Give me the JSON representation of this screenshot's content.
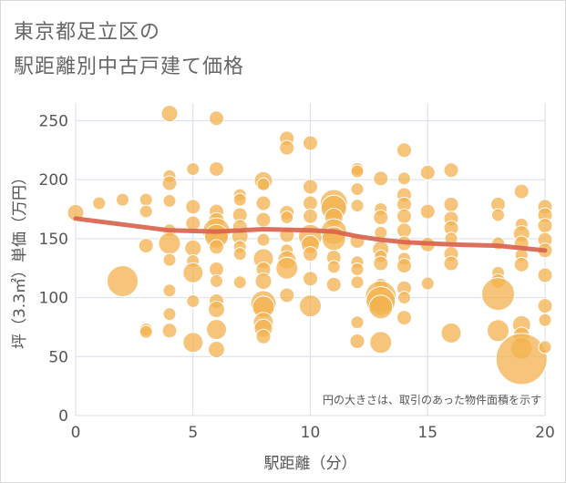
{
  "title": {
    "line1": "東京都足立区の",
    "line2": "駅距離別中古戸建て価格"
  },
  "colors": {
    "bubble_fill": "#f3b24f",
    "bubble_stroke": "#ffffff",
    "trend": "#d9604a",
    "grid": "#d8dee8",
    "axis_text": "#555555",
    "title_text": "#666666"
  },
  "note": "円の大きさは、取引のあった物件面積を示す",
  "chart_data": {
    "type": "scatter",
    "subtype": "bubble",
    "title": "東京都足立区の駅距離別中古戸建て価格",
    "xlabel": "駅距離（分）",
    "ylabel": "坪（3.3㎡）単価（万円）",
    "xlim": [
      0,
      20
    ],
    "ylim": [
      0,
      265
    ],
    "xticks": [
      "0",
      "5",
      "10",
      "15",
      "20"
    ],
    "yticks": [
      "0",
      "50",
      "100",
      "150",
      "200",
      "250"
    ],
    "grid": true,
    "points": [
      {
        "x": 0,
        "y": 172,
        "s": 9
      },
      {
        "x": 1,
        "y": 180,
        "s": 7
      },
      {
        "x": 2,
        "y": 114,
        "s": 17
      },
      {
        "x": 2,
        "y": 183,
        "s": 7
      },
      {
        "x": 3,
        "y": 183,
        "s": 7
      },
      {
        "x": 3,
        "y": 173,
        "s": 7
      },
      {
        "x": 3,
        "y": 144,
        "s": 8
      },
      {
        "x": 3,
        "y": 73,
        "s": 7
      },
      {
        "x": 3,
        "y": 71,
        "s": 7
      },
      {
        "x": 4,
        "y": 256,
        "s": 9
      },
      {
        "x": 4,
        "y": 203,
        "s": 7
      },
      {
        "x": 4,
        "y": 197,
        "s": 8
      },
      {
        "x": 4,
        "y": 182,
        "s": 7
      },
      {
        "x": 4,
        "y": 157,
        "s": 7
      },
      {
        "x": 4,
        "y": 146,
        "s": 12
      },
      {
        "x": 4,
        "y": 132,
        "s": 7
      },
      {
        "x": 4,
        "y": 106,
        "s": 7
      },
      {
        "x": 4,
        "y": 86,
        "s": 7
      },
      {
        "x": 4,
        "y": 72,
        "s": 8
      },
      {
        "x": 5,
        "y": 209,
        "s": 7
      },
      {
        "x": 5,
        "y": 177,
        "s": 8
      },
      {
        "x": 5,
        "y": 163,
        "s": 8
      },
      {
        "x": 5,
        "y": 142,
        "s": 9
      },
      {
        "x": 5,
        "y": 131,
        "s": 7
      },
      {
        "x": 5,
        "y": 121,
        "s": 11
      },
      {
        "x": 5,
        "y": 97,
        "s": 7
      },
      {
        "x": 5,
        "y": 62,
        "s": 11
      },
      {
        "x": 6,
        "y": 252,
        "s": 8
      },
      {
        "x": 6,
        "y": 209,
        "s": 8
      },
      {
        "x": 6,
        "y": 173,
        "s": 8
      },
      {
        "x": 6,
        "y": 165,
        "s": 9
      },
      {
        "x": 6,
        "y": 156,
        "s": 15
      },
      {
        "x": 6,
        "y": 152,
        "s": 13
      },
      {
        "x": 6,
        "y": 143,
        "s": 8
      },
      {
        "x": 6,
        "y": 124,
        "s": 8
      },
      {
        "x": 6,
        "y": 114,
        "s": 7
      },
      {
        "x": 6,
        "y": 97,
        "s": 8
      },
      {
        "x": 6,
        "y": 90,
        "s": 9
      },
      {
        "x": 6,
        "y": 73,
        "s": 11
      },
      {
        "x": 6,
        "y": 56,
        "s": 9
      },
      {
        "x": 7,
        "y": 187,
        "s": 7
      },
      {
        "x": 7,
        "y": 183,
        "s": 7
      },
      {
        "x": 7,
        "y": 170,
        "s": 8
      },
      {
        "x": 7,
        "y": 160,
        "s": 8
      },
      {
        "x": 7,
        "y": 152,
        "s": 9
      },
      {
        "x": 7,
        "y": 143,
        "s": 7
      },
      {
        "x": 7,
        "y": 137,
        "s": 7
      },
      {
        "x": 7,
        "y": 113,
        "s": 7
      },
      {
        "x": 8,
        "y": 199,
        "s": 10
      },
      {
        "x": 8,
        "y": 196,
        "s": 7
      },
      {
        "x": 8,
        "y": 180,
        "s": 8
      },
      {
        "x": 8,
        "y": 166,
        "s": 8
      },
      {
        "x": 8,
        "y": 149,
        "s": 7
      },
      {
        "x": 8,
        "y": 133,
        "s": 11
      },
      {
        "x": 8,
        "y": 124,
        "s": 8
      },
      {
        "x": 8,
        "y": 114,
        "s": 9
      },
      {
        "x": 8,
        "y": 95,
        "s": 14
      },
      {
        "x": 8,
        "y": 92,
        "s": 12
      },
      {
        "x": 8,
        "y": 79,
        "s": 11
      },
      {
        "x": 8,
        "y": 74,
        "s": 10
      },
      {
        "x": 8,
        "y": 67,
        "s": 8
      },
      {
        "x": 9,
        "y": 235,
        "s": 8
      },
      {
        "x": 9,
        "y": 227,
        "s": 8
      },
      {
        "x": 9,
        "y": 172,
        "s": 8
      },
      {
        "x": 9,
        "y": 168,
        "s": 7
      },
      {
        "x": 9,
        "y": 153,
        "s": 8
      },
      {
        "x": 9,
        "y": 140,
        "s": 7
      },
      {
        "x": 9,
        "y": 132,
        "s": 10
      },
      {
        "x": 9,
        "y": 125,
        "s": 12
      },
      {
        "x": 9,
        "y": 102,
        "s": 8
      },
      {
        "x": 10,
        "y": 231,
        "s": 8
      },
      {
        "x": 10,
        "y": 194,
        "s": 8
      },
      {
        "x": 10,
        "y": 180,
        "s": 8
      },
      {
        "x": 10,
        "y": 169,
        "s": 8
      },
      {
        "x": 10,
        "y": 152,
        "s": 13
      },
      {
        "x": 10,
        "y": 145,
        "s": 10
      },
      {
        "x": 10,
        "y": 137,
        "s": 8
      },
      {
        "x": 10,
        "y": 116,
        "s": 8
      },
      {
        "x": 10,
        "y": 93,
        "s": 12
      },
      {
        "x": 11,
        "y": 180,
        "s": 15
      },
      {
        "x": 11,
        "y": 176,
        "s": 14
      },
      {
        "x": 11,
        "y": 168,
        "s": 10
      },
      {
        "x": 11,
        "y": 156,
        "s": 14
      },
      {
        "x": 11,
        "y": 150,
        "s": 13
      },
      {
        "x": 11,
        "y": 134,
        "s": 8
      },
      {
        "x": 11,
        "y": 126,
        "s": 7
      },
      {
        "x": 11,
        "y": 111,
        "s": 8
      },
      {
        "x": 12,
        "y": 209,
        "s": 7
      },
      {
        "x": 12,
        "y": 207,
        "s": 7
      },
      {
        "x": 12,
        "y": 192,
        "s": 7
      },
      {
        "x": 12,
        "y": 178,
        "s": 7
      },
      {
        "x": 12,
        "y": 148,
        "s": 8
      },
      {
        "x": 12,
        "y": 130,
        "s": 7
      },
      {
        "x": 12,
        "y": 124,
        "s": 7
      },
      {
        "x": 12,
        "y": 113,
        "s": 7
      },
      {
        "x": 12,
        "y": 79,
        "s": 7
      },
      {
        "x": 12,
        "y": 63,
        "s": 8
      },
      {
        "x": 13,
        "y": 201,
        "s": 8
      },
      {
        "x": 13,
        "y": 175,
        "s": 7
      },
      {
        "x": 13,
        "y": 168,
        "s": 8
      },
      {
        "x": 13,
        "y": 155,
        "s": 7
      },
      {
        "x": 13,
        "y": 141,
        "s": 9
      },
      {
        "x": 13,
        "y": 135,
        "s": 7
      },
      {
        "x": 13,
        "y": 129,
        "s": 8
      },
      {
        "x": 13,
        "y": 111,
        "s": 7
      },
      {
        "x": 13,
        "y": 101,
        "s": 17
      },
      {
        "x": 13,
        "y": 97,
        "s": 16
      },
      {
        "x": 13,
        "y": 92,
        "s": 13
      },
      {
        "x": 13,
        "y": 62,
        "s": 12
      },
      {
        "x": 14,
        "y": 225,
        "s": 8
      },
      {
        "x": 14,
        "y": 201,
        "s": 7
      },
      {
        "x": 14,
        "y": 187,
        "s": 8
      },
      {
        "x": 14,
        "y": 179,
        "s": 8
      },
      {
        "x": 14,
        "y": 169,
        "s": 8
      },
      {
        "x": 14,
        "y": 157,
        "s": 8
      },
      {
        "x": 14,
        "y": 146,
        "s": 8
      },
      {
        "x": 14,
        "y": 133,
        "s": 7
      },
      {
        "x": 14,
        "y": 127,
        "s": 8
      },
      {
        "x": 14,
        "y": 108,
        "s": 8
      },
      {
        "x": 14,
        "y": 100,
        "s": 7
      },
      {
        "x": 14,
        "y": 83,
        "s": 8
      },
      {
        "x": 15,
        "y": 206,
        "s": 8
      },
      {
        "x": 15,
        "y": 173,
        "s": 8
      },
      {
        "x": 15,
        "y": 145,
        "s": 8
      },
      {
        "x": 15,
        "y": 112,
        "s": 7
      },
      {
        "x": 16,
        "y": 208,
        "s": 8
      },
      {
        "x": 16,
        "y": 179,
        "s": 8
      },
      {
        "x": 16,
        "y": 167,
        "s": 8
      },
      {
        "x": 16,
        "y": 159,
        "s": 8
      },
      {
        "x": 16,
        "y": 150,
        "s": 7
      },
      {
        "x": 16,
        "y": 137,
        "s": 8
      },
      {
        "x": 16,
        "y": 129,
        "s": 8
      },
      {
        "x": 16,
        "y": 70,
        "s": 11
      },
      {
        "x": 18,
        "y": 179,
        "s": 8
      },
      {
        "x": 18,
        "y": 170,
        "s": 7
      },
      {
        "x": 18,
        "y": 146,
        "s": 7
      },
      {
        "x": 18,
        "y": 121,
        "s": 7
      },
      {
        "x": 18,
        "y": 114,
        "s": 8
      },
      {
        "x": 18,
        "y": 103,
        "s": 18
      },
      {
        "x": 18,
        "y": 72,
        "s": 12
      },
      {
        "x": 19,
        "y": 190,
        "s": 8
      },
      {
        "x": 19,
        "y": 162,
        "s": 7
      },
      {
        "x": 19,
        "y": 154,
        "s": 9
      },
      {
        "x": 19,
        "y": 146,
        "s": 8
      },
      {
        "x": 19,
        "y": 136,
        "s": 7
      },
      {
        "x": 19,
        "y": 128,
        "s": 8
      },
      {
        "x": 19,
        "y": 77,
        "s": 10
      },
      {
        "x": 19,
        "y": 68,
        "s": 9
      },
      {
        "x": 19,
        "y": 57,
        "s": 12
      },
      {
        "x": 19,
        "y": 48,
        "s": 28
      },
      {
        "x": 20,
        "y": 177,
        "s": 8
      },
      {
        "x": 20,
        "y": 170,
        "s": 8
      },
      {
        "x": 20,
        "y": 161,
        "s": 8
      },
      {
        "x": 20,
        "y": 149,
        "s": 8
      },
      {
        "x": 20,
        "y": 140,
        "s": 8
      },
      {
        "x": 20,
        "y": 119,
        "s": 8
      },
      {
        "x": 20,
        "y": 93,
        "s": 8
      },
      {
        "x": 20,
        "y": 81,
        "s": 7
      },
      {
        "x": 20,
        "y": 58,
        "s": 7
      }
    ],
    "trend": {
      "x": [
        0,
        2,
        4,
        6,
        8,
        10,
        11,
        12,
        13,
        14,
        16,
        18,
        20
      ],
      "y": [
        167,
        162,
        157,
        156,
        158,
        157,
        156,
        152,
        149,
        147,
        145,
        144,
        140
      ]
    },
    "annotation": "円の大きさは、取引のあった物件面積を示す"
  }
}
